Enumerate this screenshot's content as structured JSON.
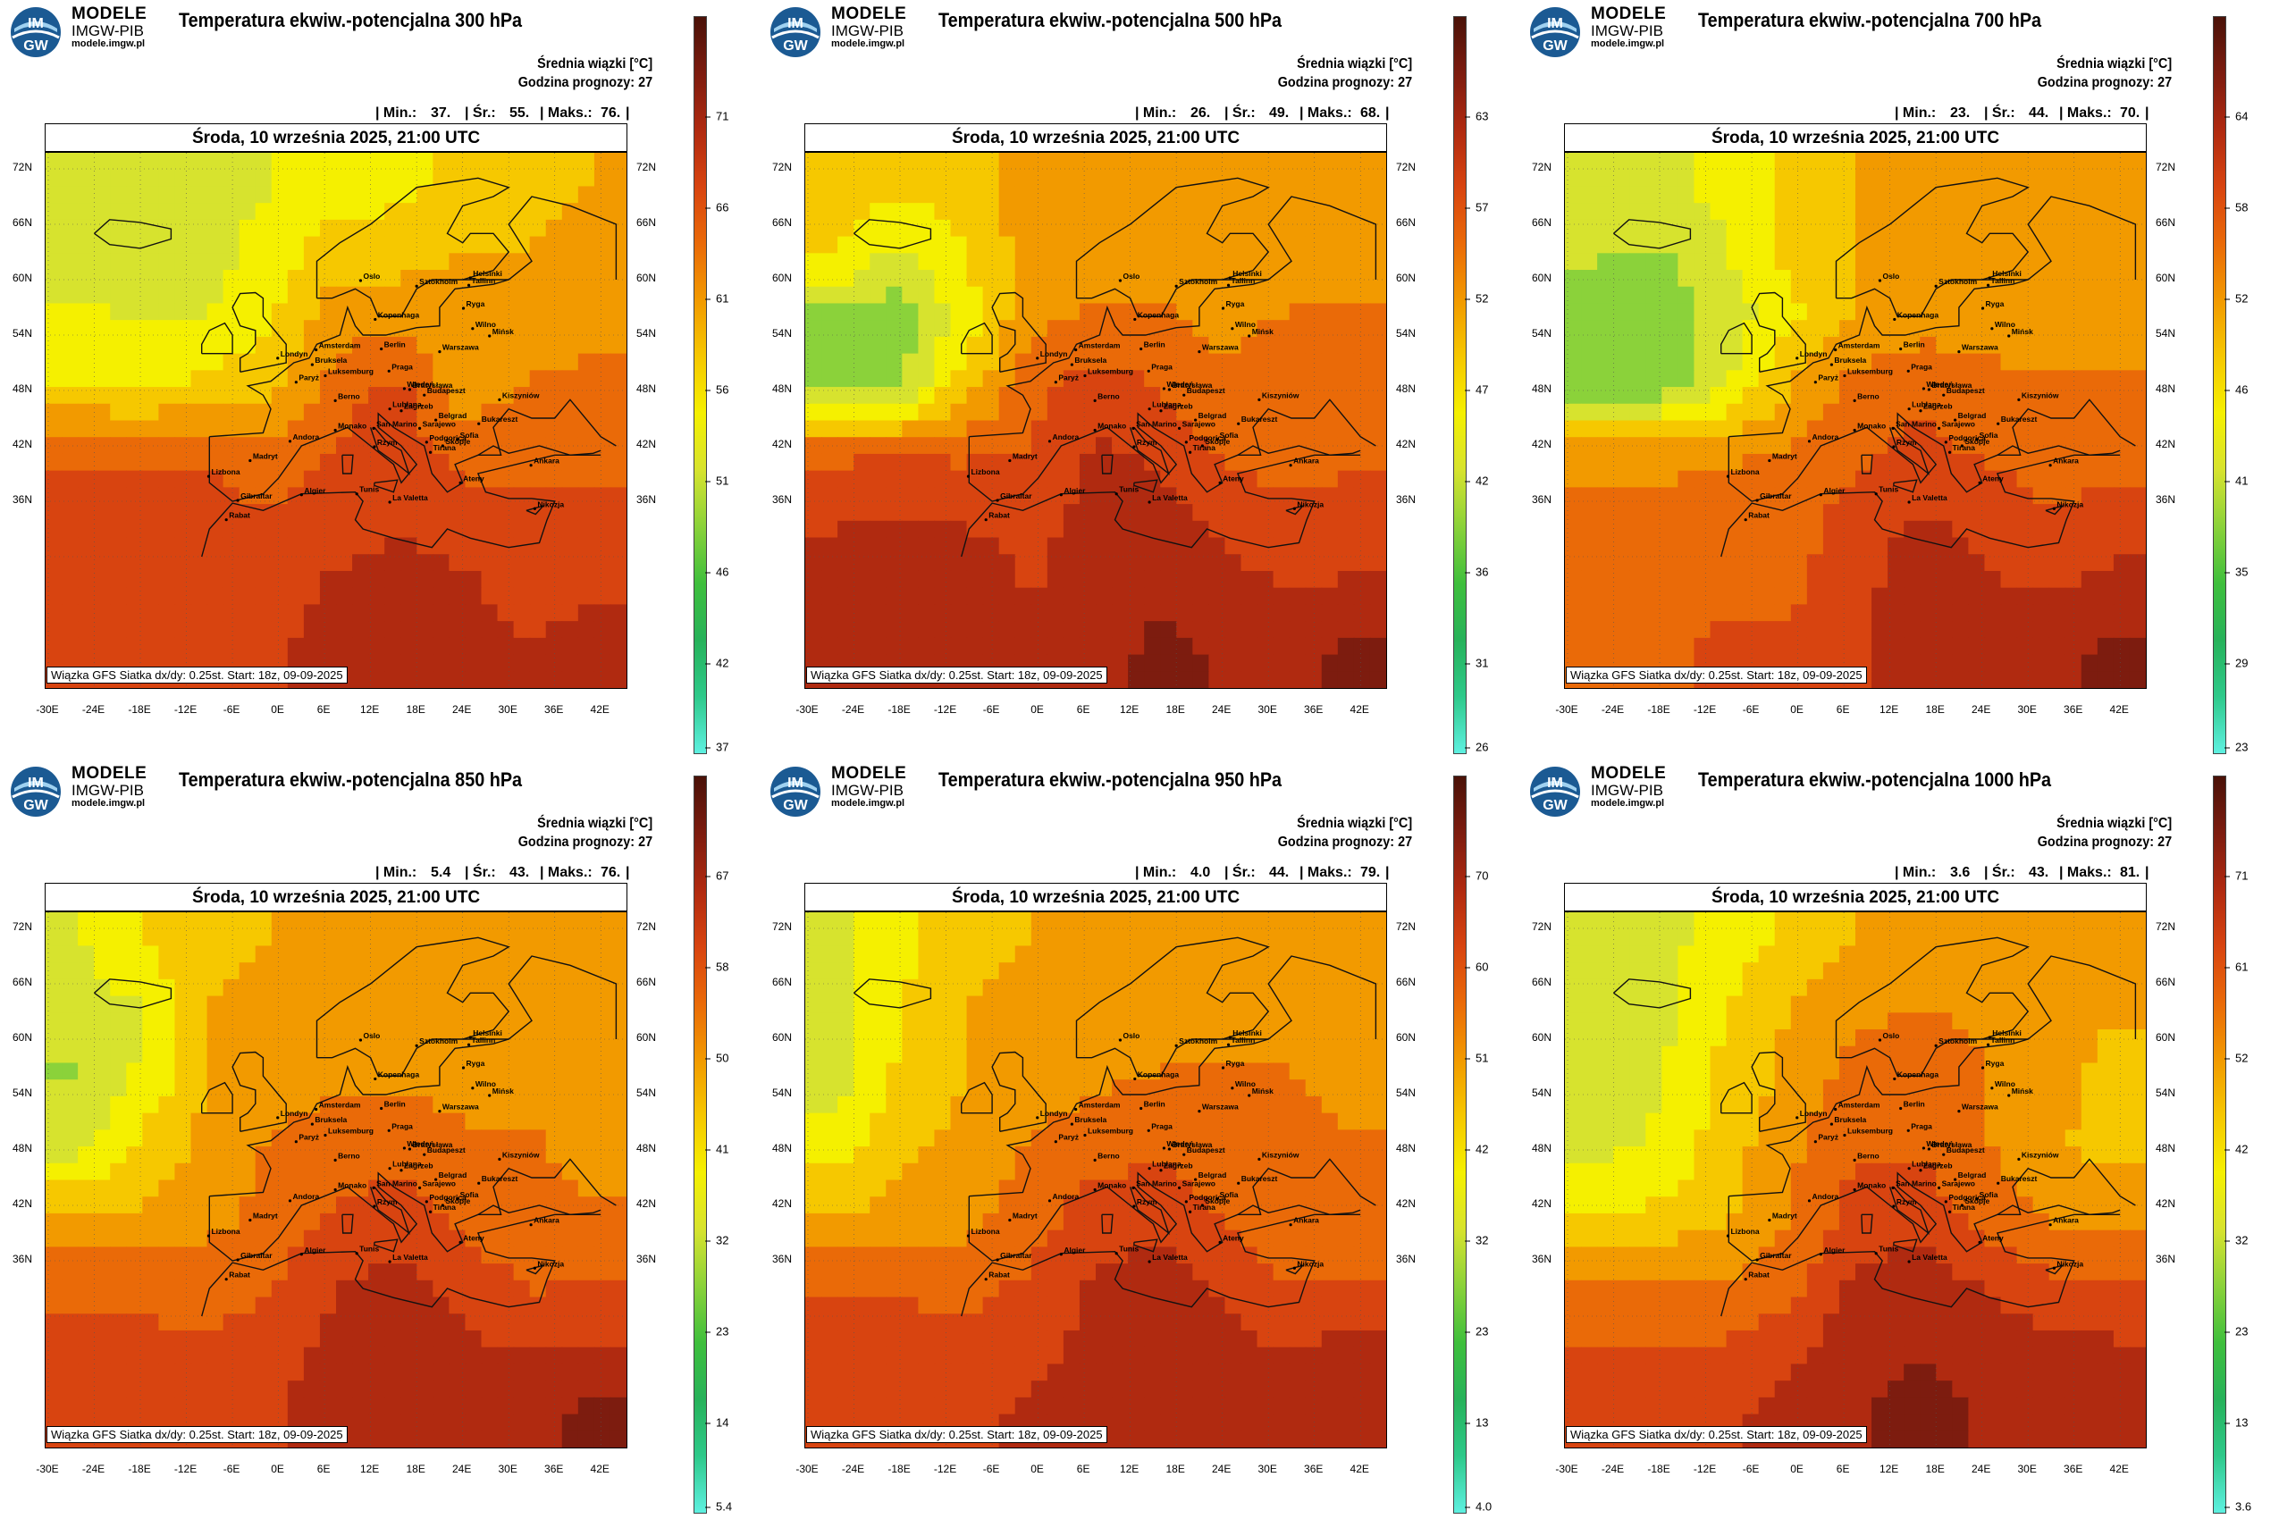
{
  "brand": {
    "logo_top": "IM",
    "logo_bottom": "GW",
    "name": "MODELE",
    "org": "IMGW-PIB",
    "url": "modele.imgw.pl"
  },
  "common": {
    "info_line1": "Średnia wiązki [°C]",
    "info_line2": "Godzina prognozy: 27",
    "min_label": "| Min.:",
    "avg_label": "| Śr.:",
    "max_label": "| Maks.:",
    "date": "Środa, 10 września 2025, 21:00 UTC",
    "source": "Wiązka GFS Siatka dx/dy: 0.25st. Start: 18z, 09-09-2025",
    "lat_labels": [
      "72N",
      "66N",
      "60N",
      "54N",
      "48N",
      "42N",
      "36N"
    ],
    "lon_labels": [
      "-30E",
      "-24E",
      "-18E",
      "-12E",
      "-6E",
      "0E",
      "6E",
      "12E",
      "18E",
      "24E",
      "30E",
      "36E",
      "42E"
    ],
    "cities": [
      "Oslo",
      "Sztokholm",
      "Helsinki",
      "Tallinn",
      "Ryga",
      "Wilno",
      "Mińsk",
      "Kopenhaga",
      "Berlin",
      "Warszawa",
      "Amsterdam",
      "Londyn",
      "Bruksela",
      "Luksemburg",
      "Paryż",
      "Praga",
      "Wiedeń",
      "Bratysława",
      "Budapeszt",
      "Kiszyniów",
      "Berno",
      "Lublana",
      "Zagrzeb",
      "Belgrad",
      "Sarajewo",
      "Bukareszt",
      "Monako",
      "San Marino",
      "Podgorica",
      "Sofia",
      "Andora",
      "Rzym",
      "Skopje",
      "Tirana",
      "Madryt",
      "Ankara",
      "Lizbona",
      "Ateny",
      "Algier",
      "Tunis",
      "Gibraltar",
      "Rabat",
      "La Valetta",
      "Nikozja"
    ]
  },
  "colors": {
    "scale": [
      "#5ef0e0",
      "#2ec98a",
      "#27b25a",
      "#3fbf3c",
      "#8bd23a",
      "#d7e32e",
      "#f5f000",
      "#f6c800",
      "#f29a00",
      "#ea6a08",
      "#d84410",
      "#b02a10",
      "#7d1c0f",
      "#4a1208"
    ]
  },
  "panels": [
    {
      "title": "Temperatura ekwiw.-potencjalna 300 hPa",
      "min": "37.",
      "avg": "55.",
      "max": "76.",
      "cbar_ticks": [
        "71",
        "66",
        "61",
        "56",
        "51",
        "46",
        "42",
        "37"
      ]
    },
    {
      "title": "Temperatura ekwiw.-potencjalna 500 hPa",
      "min": "26.",
      "avg": "49.",
      "max": "68.",
      "cbar_ticks": [
        "63",
        "57",
        "52",
        "47",
        "42",
        "36",
        "31",
        "26"
      ]
    },
    {
      "title": "Temperatura ekwiw.-potencjalna 700 hPa",
      "min": "23.",
      "avg": "44.",
      "max": "70.",
      "cbar_ticks": [
        "64",
        "58",
        "52",
        "46",
        "41",
        "35",
        "29",
        "23"
      ]
    },
    {
      "title": "Temperatura ekwiw.-potencjalna 850 hPa",
      "min": "5.4",
      "avg": "43.",
      "max": "76.",
      "cbar_ticks": [
        "67",
        "58",
        "50",
        "41",
        "32",
        "23",
        "14",
        "5.4"
      ]
    },
    {
      "title": "Temperatura ekwiw.-potencjalna 950 hPa",
      "min": "4.0",
      "avg": "44.",
      "max": "79.",
      "cbar_ticks": [
        "70",
        "60",
        "51",
        "42",
        "32",
        "23",
        "13",
        "4.0"
      ]
    },
    {
      "title": "Temperatura ekwiw.-potencjalna 1000 hPa",
      "min": "3.6",
      "avg": "43.",
      "max": "81.",
      "cbar_ticks": [
        "71",
        "61",
        "52",
        "42",
        "32",
        "23",
        "13",
        "3.6"
      ]
    }
  ]
}
